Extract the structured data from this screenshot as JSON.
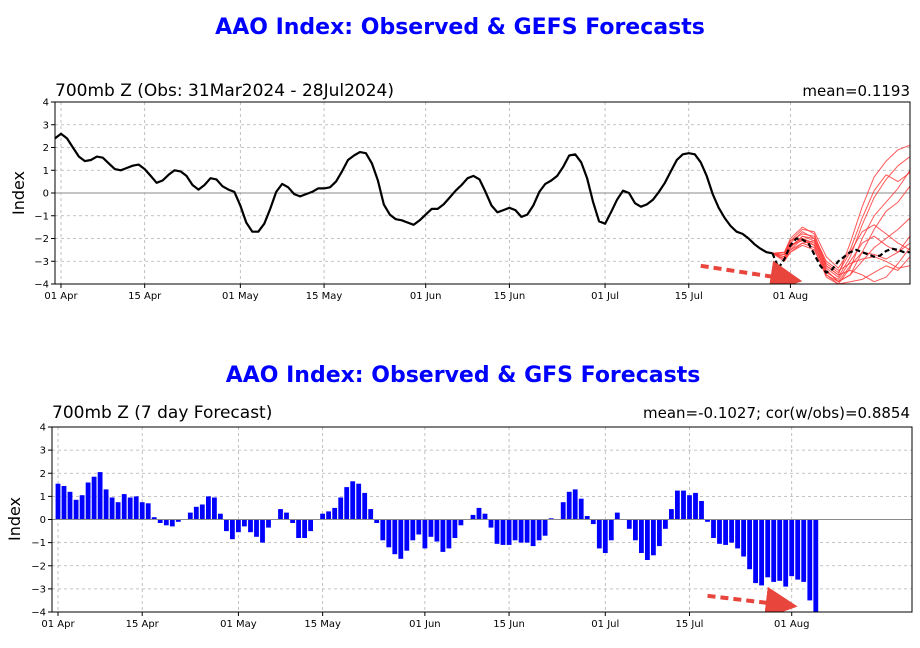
{
  "chart_data": [
    {
      "type": "line",
      "suptitle": "AAO Index: Observed & GEFS Forecasts",
      "title": "700mb Z (Obs: 31Mar2024 - 28Jul2024)",
      "stat": "mean=0.1193",
      "ylabel": "Index",
      "ylim": [
        -4,
        4
      ],
      "yticks": [
        "4",
        "3",
        "2",
        "1",
        "0",
        "−1",
        "−2",
        "−3",
        "−4"
      ],
      "xlim": [
        -1,
        142
      ],
      "xticks": [
        {
          "label": "01 Apr",
          "day": 0
        },
        {
          "label": "15 Apr",
          "day": 14
        },
        {
          "label": "01 May",
          "day": 30
        },
        {
          "label": "15 May",
          "day": 44
        },
        {
          "label": "01 Jun",
          "day": 61
        },
        {
          "label": "15 Jun",
          "day": 75
        },
        {
          "label": "01 Jul",
          "day": 91
        },
        {
          "label": "15 Jul",
          "day": 105
        },
        {
          "label": "01 Aug",
          "day": 122
        }
      ],
      "grid": true,
      "colors": {
        "observed": "#000000",
        "ensemble": "#ff3b3b",
        "arrow": "#e8453c"
      },
      "observed": {
        "x": [
          -1,
          0,
          1,
          2,
          3,
          4,
          5,
          6,
          7,
          8,
          9,
          10,
          11,
          12,
          13,
          14,
          15,
          16,
          17,
          18,
          19,
          20,
          21,
          22,
          23,
          24,
          25,
          26,
          27,
          28,
          29,
          30,
          31,
          32,
          33,
          34,
          35,
          36,
          37,
          38,
          39,
          40,
          41,
          42,
          43,
          44,
          45,
          46,
          47,
          48,
          49,
          50,
          51,
          52,
          53,
          54,
          55,
          56,
          57,
          58,
          59,
          60,
          61,
          62,
          63,
          64,
          65,
          66,
          67,
          68,
          69,
          70,
          71,
          72,
          73,
          74,
          75,
          76,
          77,
          78,
          79,
          80,
          81,
          82,
          83,
          84,
          85,
          86,
          87,
          88,
          89,
          90,
          91,
          92,
          93,
          94,
          95,
          96,
          97,
          98,
          99,
          100,
          101,
          102,
          103,
          104,
          105,
          106,
          107,
          108,
          109,
          110,
          111,
          112,
          113,
          114,
          115,
          116,
          117,
          118,
          119
        ],
        "y": [
          2.4,
          2.6,
          2.4,
          2.0,
          1.6,
          1.4,
          1.45,
          1.6,
          1.55,
          1.3,
          1.05,
          1.0,
          1.1,
          1.2,
          1.25,
          1.05,
          0.75,
          0.45,
          0.55,
          0.8,
          1.0,
          0.95,
          0.75,
          0.35,
          0.15,
          0.35,
          0.65,
          0.6,
          0.3,
          0.15,
          0.05,
          -0.55,
          -1.3,
          -1.7,
          -1.7,
          -1.35,
          -0.7,
          0.05,
          0.4,
          0.25,
          -0.05,
          -0.15,
          -0.05,
          0.05,
          0.2,
          0.2,
          0.25,
          0.5,
          0.95,
          1.45,
          1.65,
          1.8,
          1.75,
          1.3,
          0.55,
          -0.5,
          -0.95,
          -1.15,
          -1.2,
          -1.3,
          -1.4,
          -1.2,
          -0.95,
          -0.7,
          -0.7,
          -0.5,
          -0.2,
          0.1,
          0.35,
          0.65,
          0.75,
          0.6,
          0.05,
          -0.55,
          -0.85,
          -0.75,
          -0.65,
          -0.75,
          -1.05,
          -0.95,
          -0.55,
          0.05,
          0.4,
          0.55,
          0.75,
          1.15,
          1.65,
          1.7,
          1.35,
          0.65,
          -0.4,
          -1.25,
          -1.35,
          -0.85,
          -0.3,
          0.1,
          0.0,
          -0.45,
          -0.6,
          -0.5,
          -0.3,
          0.05,
          0.45,
          0.95,
          1.45,
          1.7,
          1.75,
          1.7,
          1.35,
          0.75,
          -0.05,
          -0.65,
          -1.1,
          -1.45,
          -1.7,
          -1.8,
          -2.0,
          -2.25,
          -2.45,
          -2.6,
          -2.65
        ]
      },
      "ensemble_mean": {
        "x": [
          119,
          120,
          121,
          122,
          123,
          124,
          125,
          126,
          127,
          128,
          129,
          130,
          131,
          132,
          133,
          134,
          135,
          136,
          137,
          138,
          139,
          140,
          141,
          142
        ],
        "y": [
          -2.65,
          -3.3,
          -2.9,
          -2.3,
          -2.0,
          -2.05,
          -2.2,
          -2.7,
          -3.2,
          -3.5,
          -3.35,
          -3.0,
          -2.8,
          -2.6,
          -2.5,
          -2.6,
          -2.7,
          -2.8,
          -2.75,
          -2.55,
          -2.45,
          -2.5,
          -2.6,
          -2.6
        ]
      },
      "ensemble_members": [
        {
          "x": [
            119,
            121,
            122,
            124,
            126,
            128,
            130,
            132,
            134,
            136,
            138,
            140,
            142
          ],
          "y": [
            -2.65,
            -2.6,
            -2.0,
            -1.5,
            -1.8,
            -3.2,
            -3.6,
            -2.2,
            -0.6,
            0.7,
            1.4,
            1.9,
            2.1
          ]
        },
        {
          "x": [
            119,
            121,
            122,
            124,
            126,
            128,
            130,
            132,
            134,
            136,
            138,
            140,
            142
          ],
          "y": [
            -2.65,
            -2.7,
            -2.2,
            -1.7,
            -2.0,
            -3.3,
            -3.7,
            -2.8,
            -1.4,
            -0.2,
            0.6,
            1.2,
            1.6
          ]
        },
        {
          "x": [
            119,
            121,
            122,
            124,
            126,
            128,
            130,
            132,
            134,
            136,
            138,
            140,
            142
          ],
          "y": [
            -2.65,
            -2.8,
            -2.4,
            -1.9,
            -2.1,
            -3.4,
            -3.9,
            -3.6,
            -2.6,
            -1.6,
            -0.8,
            -0.4,
            0.3
          ]
        },
        {
          "x": [
            119,
            121,
            122,
            124,
            126,
            128,
            130,
            132,
            134,
            136,
            138,
            140,
            142
          ],
          "y": [
            -2.65,
            -2.9,
            -2.5,
            -2.0,
            -2.2,
            -3.6,
            -4.0,
            -3.9,
            -3.8,
            -3.5,
            -3.2,
            -3.4,
            -2.8
          ]
        },
        {
          "x": [
            119,
            121,
            122,
            124,
            126,
            128,
            130,
            132,
            134,
            136,
            138,
            140,
            142
          ],
          "y": [
            -2.65,
            -2.8,
            -2.3,
            -2.1,
            -2.3,
            -3.5,
            -3.8,
            -3.0,
            -2.2,
            -1.9,
            -2.3,
            -2.6,
            -1.9
          ]
        },
        {
          "x": [
            119,
            121,
            122,
            124,
            126,
            128,
            130,
            132,
            134,
            136,
            138,
            140,
            142
          ],
          "y": [
            -2.65,
            -2.7,
            -2.1,
            -1.8,
            -1.9,
            -3.0,
            -3.4,
            -3.1,
            -2.9,
            -2.8,
            -3.0,
            -3.3,
            -3.2
          ]
        },
        {
          "x": [
            119,
            121,
            122,
            124,
            126,
            128,
            130,
            132,
            134,
            136,
            138,
            140,
            142
          ],
          "y": [
            -2.65,
            -3.0,
            -2.6,
            -2.2,
            -2.4,
            -3.7,
            -4.0,
            -3.3,
            -2.0,
            -1.0,
            -0.4,
            0.2,
            1.0
          ]
        },
        {
          "x": [
            119,
            121,
            122,
            124,
            126,
            128,
            130,
            132,
            134,
            136,
            138,
            140,
            142
          ],
          "y": [
            -2.65,
            -2.9,
            -2.4,
            -1.9,
            -2.0,
            -3.1,
            -3.5,
            -2.6,
            -1.7,
            -1.4,
            -1.8,
            -2.2,
            -2.5
          ]
        },
        {
          "x": [
            119,
            121,
            122,
            124,
            126,
            128,
            130,
            132,
            134,
            136,
            138,
            140,
            142
          ],
          "y": [
            -2.65,
            -2.7,
            -2.3,
            -2.0,
            -2.3,
            -3.4,
            -3.9,
            -3.6,
            -3.0,
            -2.4,
            -2.0,
            -1.6,
            -1.1
          ]
        },
        {
          "x": [
            119,
            121,
            122,
            124,
            126,
            128,
            130,
            132,
            134,
            136,
            138,
            140,
            142
          ],
          "y": [
            -2.65,
            -2.8,
            -2.5,
            -2.2,
            -2.1,
            -3.2,
            -3.6,
            -3.4,
            -3.6,
            -3.9,
            -3.7,
            -3.1,
            -2.4
          ]
        },
        {
          "x": [
            119,
            121,
            122,
            124,
            126,
            128,
            130,
            132,
            134,
            136,
            138,
            140,
            142
          ],
          "y": [
            -2.65,
            -2.6,
            -2.1,
            -1.6,
            -1.7,
            -2.8,
            -3.3,
            -2.5,
            -1.1,
            0.1,
            0.8,
            0.5,
            0.9
          ]
        },
        {
          "x": [
            119,
            121,
            122,
            124,
            126,
            128,
            130,
            132,
            134,
            136,
            138,
            140,
            142
          ],
          "y": [
            -2.65,
            -2.9,
            -2.6,
            -2.3,
            -2.5,
            -3.6,
            -3.9,
            -3.2,
            -2.6,
            -2.7,
            -2.9,
            -2.6,
            -2.2
          ]
        }
      ],
      "annotation": {
        "type": "arrow",
        "from": [
          107,
          -3.2
        ],
        "to": [
          122,
          -3.8
        ]
      }
    },
    {
      "type": "bar",
      "suptitle": "AAO Index: Observed & GFS Forecasts",
      "title": "700mb Z (7 day Forecast)",
      "stat": "mean=-0.1027; cor(w/obs)=0.8854",
      "ylabel": "Index",
      "ylim": [
        -4,
        4
      ],
      "yticks": [
        "4",
        "3",
        "2",
        "1",
        "0",
        "−1",
        "−2",
        "−3",
        "−4"
      ],
      "xlim": [
        -1,
        142
      ],
      "xticks": [
        {
          "label": "01 Apr",
          "day": 0
        },
        {
          "label": "15 Apr",
          "day": 14
        },
        {
          "label": "01 May",
          "day": 30
        },
        {
          "label": "15 May",
          "day": 44
        },
        {
          "label": "01 Jun",
          "day": 61
        },
        {
          "label": "15 Jun",
          "day": 75
        },
        {
          "label": "01 Jul",
          "day": 91
        },
        {
          "label": "15 Jul",
          "day": 105
        },
        {
          "label": "01 Aug",
          "day": 122
        }
      ],
      "grid": true,
      "colors": {
        "bar": "#0000ff",
        "arrow": "#e8453c"
      },
      "x_start_day": 0,
      "values": [
        1.55,
        1.45,
        1.2,
        0.85,
        1.05,
        1.6,
        1.85,
        2.05,
        1.3,
        0.95,
        0.75,
        1.1,
        0.95,
        1.0,
        0.75,
        0.7,
        0.1,
        -0.15,
        -0.25,
        -0.3,
        -0.1,
        0.0,
        0.3,
        0.55,
        0.65,
        1.0,
        0.95,
        0.25,
        -0.5,
        -0.85,
        -0.55,
        -0.3,
        -0.55,
        -0.75,
        -1.0,
        -0.35,
        0.0,
        0.45,
        0.3,
        -0.15,
        -0.8,
        -0.8,
        -0.5,
        0.0,
        0.25,
        0.35,
        0.5,
        0.95,
        1.4,
        1.65,
        1.55,
        1.15,
        0.45,
        -0.15,
        -0.9,
        -1.2,
        -1.5,
        -1.7,
        -1.35,
        -0.9,
        -0.65,
        -1.25,
        -0.75,
        -0.95,
        -1.4,
        -1.25,
        -0.8,
        -0.25,
        0.0,
        0.2,
        0.5,
        0.25,
        -0.35,
        -1.05,
        -1.1,
        -1.1,
        -0.9,
        -1.0,
        -1.0,
        -1.15,
        -0.9,
        -0.7,
        0.05,
        0.0,
        0.75,
        1.2,
        1.3,
        0.9,
        0.15,
        -0.2,
        -1.25,
        -1.45,
        -0.9,
        0.3,
        0.0,
        -0.4,
        -0.9,
        -1.45,
        -1.75,
        -1.55,
        -1.15,
        -0.4,
        0.45,
        1.25,
        1.25,
        1.05,
        1.15,
        0.8,
        -0.1,
        -0.8,
        -1.05,
        -1.1,
        -1.0,
        -1.25,
        -1.6,
        -2.15,
        -2.75,
        -2.85,
        -2.5,
        -2.7,
        -2.65,
        -2.9,
        -2.45,
        -2.6,
        -2.7,
        -3.5,
        -4.0
      ],
      "annotation": {
        "type": "arrow",
        "from": [
          108,
          -3.3
        ],
        "to": [
          121,
          -3.7
        ]
      }
    }
  ]
}
